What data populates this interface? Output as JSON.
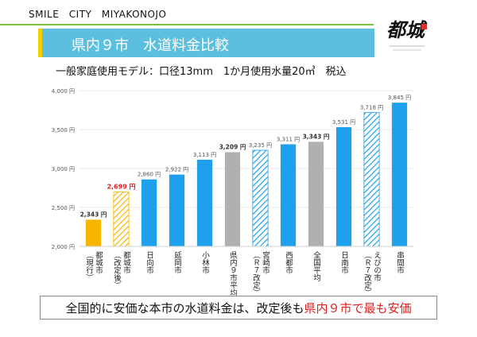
{
  "header": {
    "brand": "SMILE　CITY　MIYAKONOJO"
  },
  "title": "県内９市　水道料金比較",
  "subtitle": "一般家庭使用モデル：口径13mm　1か月使用水量20㎥　税込",
  "logo": {
    "name": "miyakonojo-logo",
    "text": "都城"
  },
  "footer": {
    "prefix": "全国的に安価な本市の水道料金は、改定後も",
    "highlight": "県内９市で最も安価"
  },
  "colors": {
    "blue": "#1ea0ec",
    "gray": "#b0b0b0",
    "current": "#f7b500",
    "revised_hatch": "#f7b500",
    "blue_hatch": "#1ea0ec",
    "red_label": "#e02020",
    "axis_text": "#555555"
  },
  "chart_data": {
    "type": "bar",
    "title": "県内９市　水道料金比較",
    "ylabel": "",
    "xlabel": "",
    "ylim": [
      2000,
      4000
    ],
    "yticks": [
      2000,
      2500,
      3000,
      3500,
      4000
    ],
    "ytick_labels": [
      "2,000 円",
      "2,500 円",
      "3,000 円",
      "3,500 円",
      "4,000 円"
    ],
    "categories": [
      "都城市（現行）",
      "都城市（改定後）",
      "日向市",
      "延岡市",
      "小林市",
      "県内９市平均",
      "宮崎市（Ｒ７改定）",
      "西都市",
      "全国平均",
      "日南市",
      "えびの市（Ｒ７改定）",
      "串間市"
    ],
    "category_lines": [
      [
        "都城市",
        "（現行）"
      ],
      [
        "都城市",
        "（改定後）"
      ],
      [
        "日向市"
      ],
      [
        "延岡市"
      ],
      [
        "小林市"
      ],
      [
        "県内９市平均"
      ],
      [
        "宮崎市",
        "（Ｒ７改定）"
      ],
      [
        "西都市"
      ],
      [
        "全国平均"
      ],
      [
        "日南市"
      ],
      [
        "えびの市",
        "（Ｒ７改定）"
      ],
      [
        "串間市"
      ]
    ],
    "values": [
      2343,
      2699,
      2860,
      2922,
      3113,
      3209,
      3235,
      3311,
      3343,
      3531,
      3718,
      3845
    ],
    "value_labels": [
      "2,343 円",
      "2,699 円",
      "2,860 円",
      "2,922 円",
      "3,113 円",
      "3,209 円",
      "3,235 円",
      "3,311 円",
      "3,343 円",
      "3,531 円",
      "3,718 円",
      "3,845 円"
    ],
    "styles": [
      "current",
      "revised",
      "blue",
      "blue",
      "blue",
      "gray",
      "blue-hatch",
      "blue",
      "gray",
      "blue",
      "blue-hatch",
      "blue"
    ],
    "label_styles": [
      "bold-dark",
      "bold-red",
      "normal",
      "normal",
      "normal",
      "bold-dark",
      "normal",
      "normal",
      "bold-dark",
      "normal",
      "normal",
      "normal"
    ]
  }
}
